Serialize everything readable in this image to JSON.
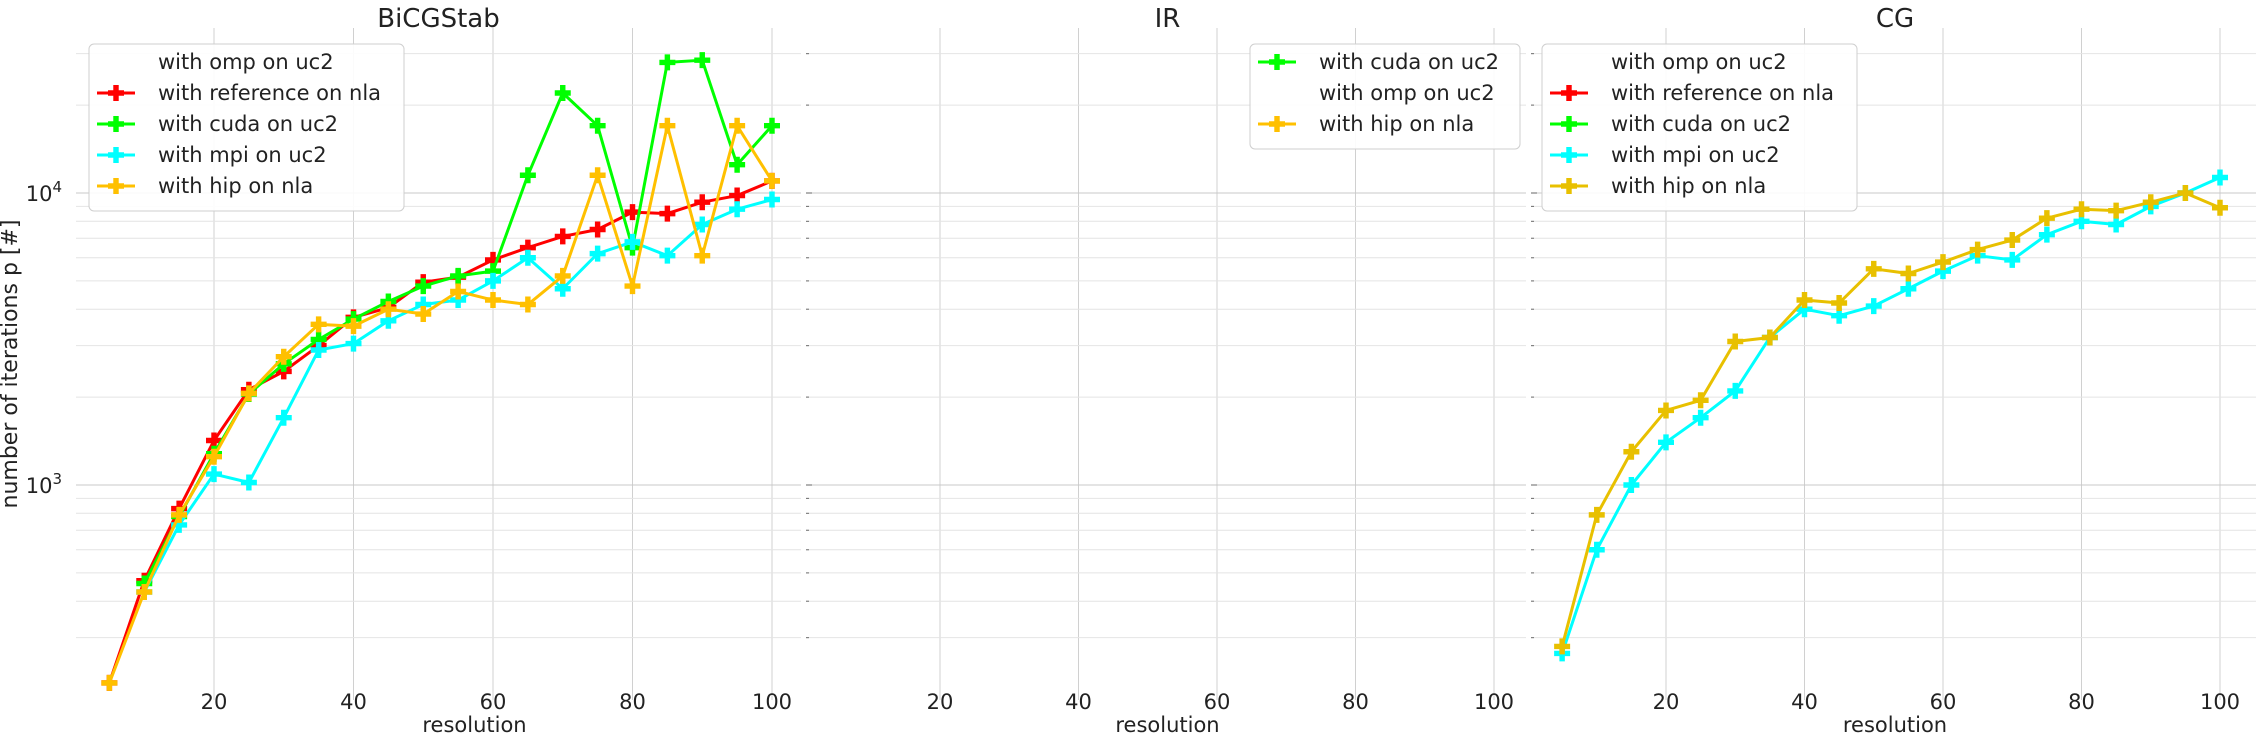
{
  "figure": {
    "ylabel": "number of iterations p [#]"
  },
  "chart_data": [
    {
      "type": "line",
      "title": "BiCGStab",
      "xlabel": "resolution",
      "ylabel": "number of iterations p [#]",
      "yscale": "log",
      "xlim": [
        5,
        102
      ],
      "ylim": [
        210,
        35000
      ],
      "xticks": [
        20,
        40,
        60,
        80,
        100
      ],
      "yticks": [
        1000,
        10000
      ],
      "ytick_labels": [
        "10^3",
        "10^4"
      ],
      "grid": true,
      "legend_position": "top-left",
      "legend": [
        "with omp on uc2",
        "with reference on nla",
        "with cuda on uc2",
        "with mpi on uc2",
        "with hip on nla"
      ],
      "series": [
        {
          "name": "with omp on uc2",
          "color": "none",
          "x": [],
          "y": []
        },
        {
          "name": "with reference on nla",
          "color": "#ff0000",
          "x": [
            5,
            10,
            15,
            20,
            25,
            30,
            35,
            40,
            45,
            50,
            55,
            60,
            65,
            70,
            75,
            80,
            85,
            90,
            95,
            100
          ],
          "y": [
            210,
            470,
            830,
            1420,
            2120,
            2450,
            3000,
            3750,
            4050,
            4950,
            5150,
            5900,
            6500,
            7100,
            7500,
            8600,
            8500,
            9300,
            9800,
            11000
          ]
        },
        {
          "name": "with cuda on uc2",
          "color": "#00ff00",
          "x": [
            10,
            15,
            20,
            25,
            30,
            35,
            40,
            45,
            50,
            55,
            60,
            65,
            70,
            75,
            80,
            85,
            90,
            95,
            100
          ],
          "y": [
            460,
            780,
            1280,
            2050,
            2600,
            3150,
            3700,
            4250,
            4800,
            5200,
            5400,
            11500,
            22000,
            17000,
            6500,
            28000,
            28500,
            12500,
            17000
          ]
        },
        {
          "name": "with mpi on uc2",
          "color": "#00ffff",
          "x": [
            10,
            15,
            20,
            25,
            30,
            35,
            40,
            45,
            50,
            55,
            60,
            65,
            70,
            75,
            80,
            85,
            90,
            95,
            100
          ],
          "y": [
            430,
            730,
            1090,
            1020,
            1700,
            2900,
            3050,
            3650,
            4150,
            4300,
            5000,
            6000,
            4700,
            6200,
            6800,
            6100,
            7800,
            8800,
            9500
          ]
        },
        {
          "name": "with hip on nla",
          "color": "#ffc000",
          "x": [
            5,
            10,
            15,
            20,
            25,
            30,
            35,
            40,
            45,
            50,
            55,
            60,
            65,
            70,
            75,
            80,
            85,
            90,
            95,
            100
          ],
          "y": [
            210,
            430,
            790,
            1250,
            2060,
            2750,
            3550,
            3500,
            4000,
            3850,
            4600,
            4300,
            4150,
            5200,
            11500,
            4800,
            17000,
            6100,
            17000,
            11000
          ]
        }
      ]
    },
    {
      "type": "line",
      "title": "IR",
      "xlabel": "resolution",
      "yscale": "log",
      "xlim": [
        5,
        102
      ],
      "ylim": [
        210,
        35000
      ],
      "xticks": [
        20,
        40,
        60,
        80,
        100
      ],
      "grid": true,
      "legend_position": "top-right",
      "legend": [
        "with cuda on uc2",
        "with omp on uc2",
        "with hip on nla"
      ],
      "series": [
        {
          "name": "with cuda on uc2",
          "color": "#00ff00",
          "x": [],
          "y": []
        },
        {
          "name": "with omp on uc2",
          "color": "none",
          "x": [],
          "y": []
        },
        {
          "name": "with hip on nla",
          "color": "#ffc000",
          "x": [],
          "y": []
        }
      ]
    },
    {
      "type": "line",
      "title": "CG",
      "xlabel": "resolution",
      "yscale": "log",
      "xlim": [
        2,
        102
      ],
      "ylim": [
        210,
        35000
      ],
      "xticks": [
        20,
        40,
        60,
        80,
        100
      ],
      "grid": true,
      "legend_position": "top-left",
      "legend": [
        "with omp on uc2",
        "with reference on nla",
        "with cuda on uc2",
        "with mpi on uc2",
        "with hip on nla"
      ],
      "series": [
        {
          "name": "with omp on uc2",
          "color": "none",
          "x": [],
          "y": []
        },
        {
          "name": "with reference on nla",
          "color": "#ff0000",
          "x": [],
          "y": []
        },
        {
          "name": "with cuda on uc2",
          "color": "#00ff00",
          "x": [],
          "y": []
        },
        {
          "name": "with mpi on uc2",
          "color": "#00ffff",
          "x": [
            5,
            10,
            15,
            20,
            25,
            30,
            35,
            40,
            45,
            50,
            55,
            60,
            65,
            70,
            75,
            80,
            85,
            90,
            95,
            100
          ],
          "y": [
            265,
            600,
            1000,
            1400,
            1700,
            2100,
            3200,
            4000,
            3800,
            4100,
            4700,
            5400,
            6100,
            5900,
            7200,
            8000,
            7800,
            9000,
            10000,
            11300
          ]
        },
        {
          "name": "with hip on nla",
          "color": "#e8c000",
          "x": [
            5,
            10,
            15,
            20,
            25,
            30,
            35,
            40,
            45,
            50,
            55,
            60,
            65,
            70,
            75,
            80,
            85,
            90,
            95,
            100
          ],
          "y": [
            280,
            790,
            1300,
            1800,
            1950,
            3100,
            3200,
            4300,
            4200,
            5500,
            5300,
            5800,
            6400,
            6900,
            8200,
            8800,
            8700,
            9300,
            10000,
            8900
          ]
        }
      ]
    }
  ]
}
